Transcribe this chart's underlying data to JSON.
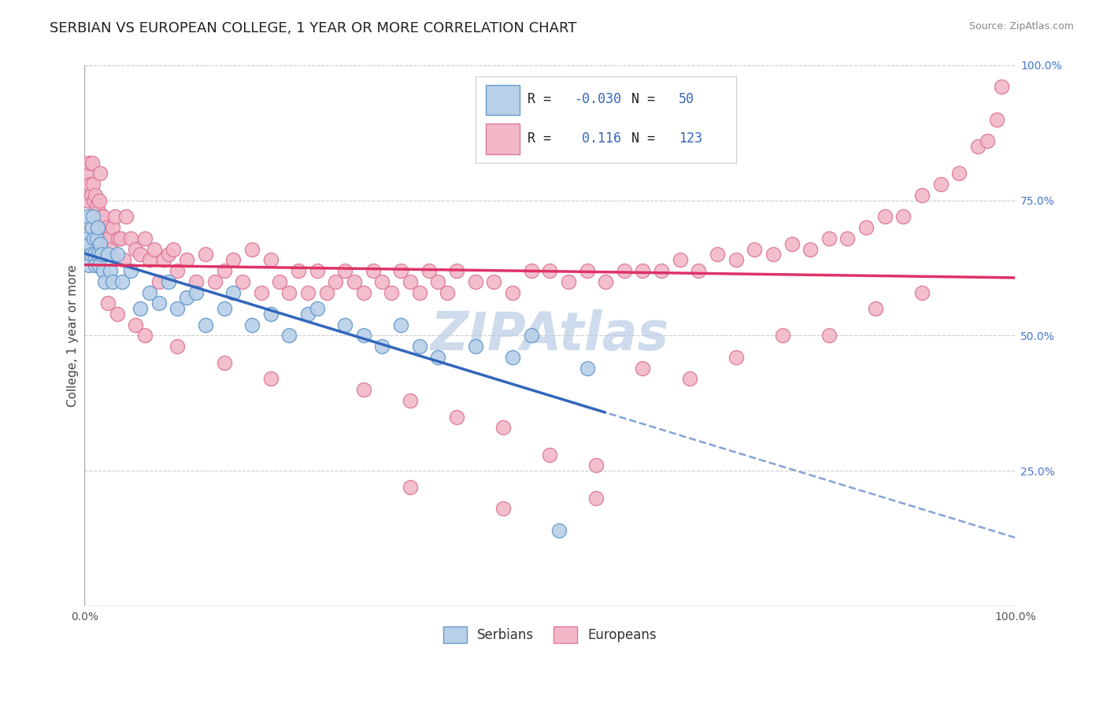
{
  "title": "SERBIAN VS EUROPEAN COLLEGE, 1 YEAR OR MORE CORRELATION CHART",
  "source_text": "Source: ZipAtlas.com",
  "ylabel": "College, 1 year or more",
  "xlim": [
    0.0,
    1.0
  ],
  "ylim": [
    0.0,
    1.0
  ],
  "ytick_positions": [
    0.25,
    0.5,
    0.75,
    1.0
  ],
  "ytick_labels": [
    "25.0%",
    "50.0%",
    "75.0%",
    "100.0%"
  ],
  "serbian_color": "#b8d0e8",
  "european_color": "#f2b8c8",
  "serbian_edge": "#6699cc",
  "european_edge": "#dd7799",
  "trend_serbian_color": "#3366bb",
  "trend_european_color": "#dd3366",
  "R_serbian": -0.03,
  "N_serbian": 50,
  "R_european": 0.116,
  "N_european": 123,
  "background_color": "#ffffff",
  "grid_color": "#cccccc",
  "title_fontsize": 13,
  "watermark_color": "#b8cce4",
  "serbian_x": [
    0.003,
    0.004,
    0.005,
    0.006,
    0.007,
    0.008,
    0.009,
    0.01,
    0.011,
    0.012,
    0.013,
    0.014,
    0.015,
    0.016,
    0.017,
    0.018,
    0.02,
    0.022,
    0.025,
    0.028,
    0.03,
    0.035,
    0.04,
    0.05,
    0.06,
    0.07,
    0.08,
    0.09,
    0.1,
    0.11,
    0.12,
    0.13,
    0.15,
    0.16,
    0.18,
    0.2,
    0.22,
    0.24,
    0.25,
    0.28,
    0.3,
    0.32,
    0.34,
    0.36,
    0.38,
    0.42,
    0.46,
    0.48,
    0.51,
    0.54
  ],
  "serbian_y": [
    0.68,
    0.72,
    0.63,
    0.67,
    0.65,
    0.7,
    0.72,
    0.68,
    0.65,
    0.63,
    0.68,
    0.7,
    0.65,
    0.63,
    0.67,
    0.65,
    0.62,
    0.6,
    0.65,
    0.62,
    0.6,
    0.65,
    0.6,
    0.62,
    0.55,
    0.58,
    0.56,
    0.6,
    0.55,
    0.57,
    0.58,
    0.52,
    0.55,
    0.58,
    0.52,
    0.54,
    0.5,
    0.54,
    0.55,
    0.52,
    0.5,
    0.48,
    0.52,
    0.48,
    0.46,
    0.48,
    0.46,
    0.5,
    0.14,
    0.44
  ],
  "european_x": [
    0.003,
    0.004,
    0.005,
    0.006,
    0.007,
    0.008,
    0.009,
    0.01,
    0.011,
    0.012,
    0.013,
    0.014,
    0.015,
    0.016,
    0.017,
    0.018,
    0.019,
    0.02,
    0.022,
    0.024,
    0.026,
    0.028,
    0.03,
    0.033,
    0.036,
    0.039,
    0.042,
    0.045,
    0.05,
    0.055,
    0.06,
    0.065,
    0.07,
    0.075,
    0.08,
    0.085,
    0.09,
    0.095,
    0.1,
    0.11,
    0.12,
    0.13,
    0.14,
    0.15,
    0.16,
    0.17,
    0.18,
    0.19,
    0.2,
    0.21,
    0.22,
    0.23,
    0.24,
    0.25,
    0.26,
    0.27,
    0.28,
    0.29,
    0.3,
    0.31,
    0.32,
    0.33,
    0.34,
    0.35,
    0.36,
    0.37,
    0.38,
    0.39,
    0.4,
    0.42,
    0.44,
    0.46,
    0.48,
    0.5,
    0.52,
    0.54,
    0.56,
    0.58,
    0.6,
    0.62,
    0.64,
    0.66,
    0.68,
    0.7,
    0.72,
    0.74,
    0.76,
    0.78,
    0.8,
    0.82,
    0.84,
    0.86,
    0.88,
    0.9,
    0.92,
    0.94,
    0.96,
    0.97,
    0.98,
    0.985,
    0.025,
    0.035,
    0.055,
    0.065,
    0.1,
    0.15,
    0.2,
    0.3,
    0.35,
    0.4,
    0.45,
    0.5,
    0.55,
    0.6,
    0.65,
    0.7,
    0.75,
    0.8,
    0.85,
    0.9,
    0.55,
    0.45,
    0.35
  ],
  "european_y": [
    0.8,
    0.75,
    0.82,
    0.78,
    0.76,
    0.82,
    0.78,
    0.75,
    0.72,
    0.76,
    0.74,
    0.7,
    0.73,
    0.75,
    0.8,
    0.72,
    0.68,
    0.72,
    0.68,
    0.7,
    0.68,
    0.66,
    0.7,
    0.72,
    0.68,
    0.68,
    0.64,
    0.72,
    0.68,
    0.66,
    0.65,
    0.68,
    0.64,
    0.66,
    0.6,
    0.64,
    0.65,
    0.66,
    0.62,
    0.64,
    0.6,
    0.65,
    0.6,
    0.62,
    0.64,
    0.6,
    0.66,
    0.58,
    0.64,
    0.6,
    0.58,
    0.62,
    0.58,
    0.62,
    0.58,
    0.6,
    0.62,
    0.6,
    0.58,
    0.62,
    0.6,
    0.58,
    0.62,
    0.6,
    0.58,
    0.62,
    0.6,
    0.58,
    0.62,
    0.6,
    0.6,
    0.58,
    0.62,
    0.62,
    0.6,
    0.62,
    0.6,
    0.62,
    0.62,
    0.62,
    0.64,
    0.62,
    0.65,
    0.64,
    0.66,
    0.65,
    0.67,
    0.66,
    0.68,
    0.68,
    0.7,
    0.72,
    0.72,
    0.76,
    0.78,
    0.8,
    0.85,
    0.86,
    0.9,
    0.96,
    0.56,
    0.54,
    0.52,
    0.5,
    0.48,
    0.45,
    0.42,
    0.4,
    0.38,
    0.35,
    0.33,
    0.28,
    0.26,
    0.44,
    0.42,
    0.46,
    0.5,
    0.5,
    0.55,
    0.58,
    0.2,
    0.18,
    0.22
  ]
}
